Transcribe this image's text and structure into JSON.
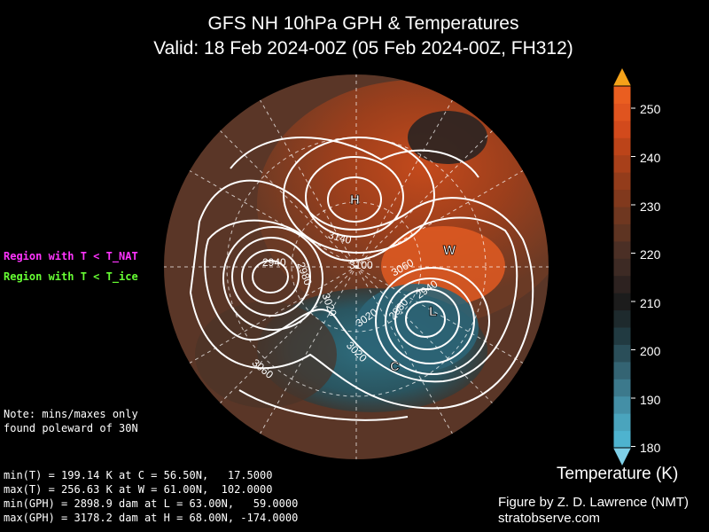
{
  "title_line1": "GFS NH 10hPa GPH & Temperatures",
  "title_line2": "Valid: 18 Feb 2024-00Z  (05 Feb 2024-00Z, FH312)",
  "legend": {
    "nat": "Region with T < T_NAT",
    "ice": "Region with T < T_ice",
    "nat_color": "#ff33ff",
    "ice_color": "#66ff33"
  },
  "note_line1": "Note: mins/maxes only",
  "note_line2": "found poleward of 30N",
  "stats": [
    "min(T) = 199.14 K at C = 56.50N,   17.5000",
    "max(T) = 256.63 K at W = 61.00N,  102.0000",
    "min(GPH) = 2898.9 dam at L = 63.00N,   59.0000",
    "max(GPH) = 3178.2 dam at H = 68.00N, -174.0000"
  ],
  "markers": {
    "H": "H",
    "L": "L",
    "W": "W",
    "C": "C"
  },
  "contour_labels": [
    "3140",
    "3100",
    "3060",
    "2940",
    "2980",
    "3020",
    "3020",
    "2980",
    "2940",
    "3060",
    "3020",
    "3060"
  ],
  "colorbar": {
    "title": "Temperature (K)",
    "ticks": [
      "250",
      "240",
      "230",
      "220",
      "210",
      "200",
      "190",
      "180"
    ],
    "colors": [
      "#4eb3cf",
      "#4aa4bd",
      "#448fa6",
      "#3c798c",
      "#346473",
      "#2a4e59",
      "#213a41",
      "#1e2a2d",
      "#1c1c1c",
      "#2d2220",
      "#3d2a24",
      "#4b2f25",
      "#5e3422",
      "#6f3720",
      "#81391d",
      "#933c1b",
      "#a8401a",
      "#bc4419",
      "#d24a1c",
      "#e0541f",
      "#ea5e20"
    ]
  },
  "credit_line1": "Figure by Z. D. Lawrence (NMT)",
  "credit_line2": "stratobserve.com"
}
